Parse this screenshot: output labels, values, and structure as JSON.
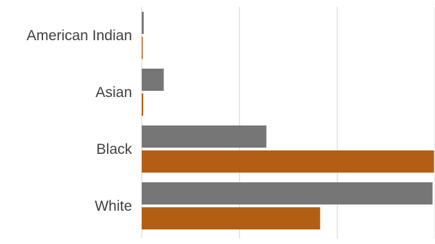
{
  "chart_data": {
    "type": "bar",
    "orientation": "horizontal",
    "title": "",
    "xlabel": "",
    "ylabel": "",
    "categories": [
      "American Indian",
      "Asian",
      "Black",
      "White"
    ],
    "series": [
      {
        "color": "#767676",
        "values": [
          0.4,
          4.5,
          25.5,
          59.5
        ]
      },
      {
        "color": "#B25F15",
        "values": [
          0.2,
          0.3,
          59.8,
          36.5
        ]
      }
    ],
    "xlim": [
      0,
      60
    ],
    "grid": true,
    "legend": "none"
  }
}
